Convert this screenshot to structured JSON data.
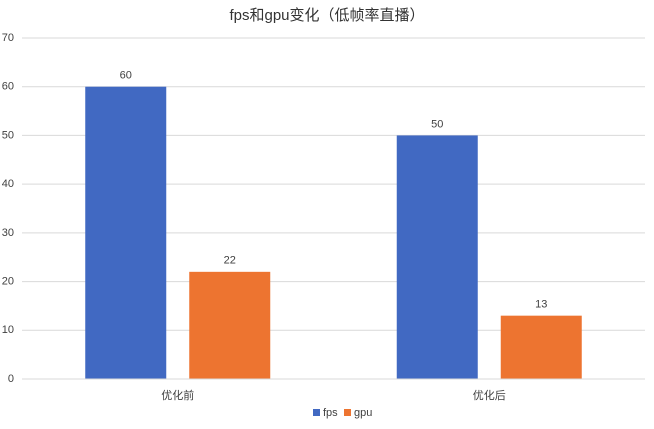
{
  "chart_data": {
    "type": "bar",
    "title": "fps和gpu变化（低帧率直播）",
    "categories": [
      "优化前",
      "优化后"
    ],
    "series": [
      {
        "name": "fps",
        "color": "#4169c2",
        "values": [
          60,
          50
        ]
      },
      {
        "name": "gpu",
        "color": "#ed7430",
        "values": [
          22,
          13
        ]
      }
    ],
    "ylim": [
      0,
      70
    ],
    "yticks": [
      0,
      10,
      20,
      30,
      40,
      50,
      60,
      70
    ],
    "grid": true,
    "legend": "bottom"
  }
}
